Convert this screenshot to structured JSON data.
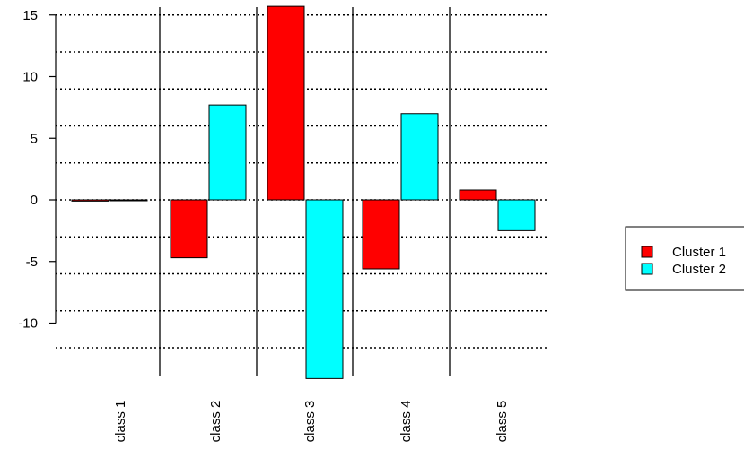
{
  "chart_data": {
    "type": "bar",
    "categories": [
      "class  1",
      "class  2",
      "class  3",
      "class  4",
      "class  5"
    ],
    "series": [
      {
        "name": "Cluster  1",
        "values": [
          -0.1,
          -4.7,
          15.7,
          -5.6,
          0.8
        ],
        "color": "#FF0000"
      },
      {
        "name": "Cluster  2",
        "values": [
          0.0,
          7.7,
          -14.5,
          7.0,
          -2.5
        ],
        "color": "#00FFFF"
      }
    ],
    "yticks": [
      -10,
      -5,
      0,
      5,
      10,
      15
    ],
    "ylim": [
      -14.5,
      15.7
    ],
    "grid": {
      "horizontal_dotted": [
        -12,
        -9,
        -6,
        -3,
        0,
        3,
        6,
        9,
        12,
        15
      ]
    },
    "legend_position": "right",
    "title": "",
    "xlabel": "",
    "ylabel": ""
  }
}
